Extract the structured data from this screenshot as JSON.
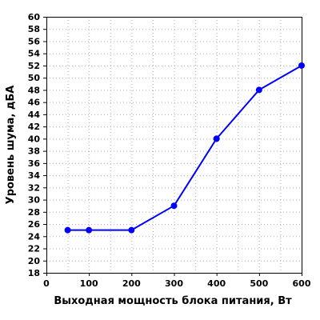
{
  "chart_data": {
    "type": "line",
    "title": "",
    "xlabel": "Выходная мощность блока питания, Вт",
    "ylabel": "Уровень шума, дБА",
    "xlim": [
      0,
      600
    ],
    "ylim": [
      18,
      60
    ],
    "xticks": [
      "0",
      "100",
      "200",
      "300",
      "400",
      "500",
      "600"
    ],
    "yticks": [
      "18",
      "20",
      "22",
      "24",
      "26",
      "28",
      "30",
      "32",
      "34",
      "36",
      "38",
      "40",
      "42",
      "44",
      "46",
      "48",
      "50",
      "52",
      "54",
      "56",
      "58",
      "60"
    ],
    "grid": true,
    "legend": "none",
    "series": [
      {
        "x": [
          50,
          100,
          200,
          300,
          400,
          500,
          600
        ],
        "values": [
          25,
          25,
          25,
          29,
          40,
          48,
          52
        ],
        "color": "#0000ff",
        "marker": "circle"
      }
    ]
  }
}
